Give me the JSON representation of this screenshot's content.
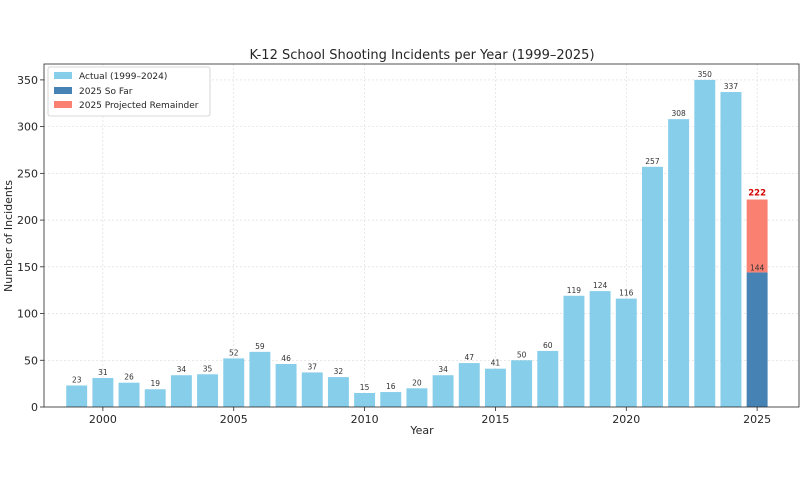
{
  "chart_data": {
    "type": "bar",
    "title": "K-12 School Shooting Incidents per Year (1999–2025)",
    "xlabel": "Year",
    "ylabel": "Number of Incidents",
    "ylim": [
      0,
      367
    ],
    "xlim": [
      1997.75,
      2026.6
    ],
    "yticks": [
      0,
      50,
      100,
      150,
      200,
      250,
      300,
      350
    ],
    "xticks": [
      2000,
      2005,
      2010,
      2015,
      2020,
      2025
    ],
    "grid": true,
    "legend_position": "top-left",
    "series": [
      {
        "name": "Actual (1999–2024)",
        "color": "#87ceeb",
        "x": [
          1999,
          2000,
          2001,
          2002,
          2003,
          2004,
          2005,
          2006,
          2007,
          2008,
          2009,
          2010,
          2011,
          2012,
          2013,
          2014,
          2015,
          2016,
          2017,
          2018,
          2019,
          2020,
          2021,
          2022,
          2023,
          2024
        ],
        "values": [
          23,
          31,
          26,
          19,
          34,
          35,
          52,
          59,
          46,
          37,
          32,
          15,
          16,
          20,
          34,
          47,
          41,
          50,
          60,
          119,
          124,
          116,
          257,
          308,
          350,
          337
        ]
      },
      {
        "name": "2025 So Far",
        "color": "#4682b4",
        "x": [
          2025
        ],
        "values": [
          144
        ]
      },
      {
        "name": "2025 Projected Remainder",
        "color": "#fa8072",
        "x": [
          2025
        ],
        "values": [
          78
        ],
        "stacked_on": "2025 So Far",
        "total_label": "222"
      }
    ]
  }
}
